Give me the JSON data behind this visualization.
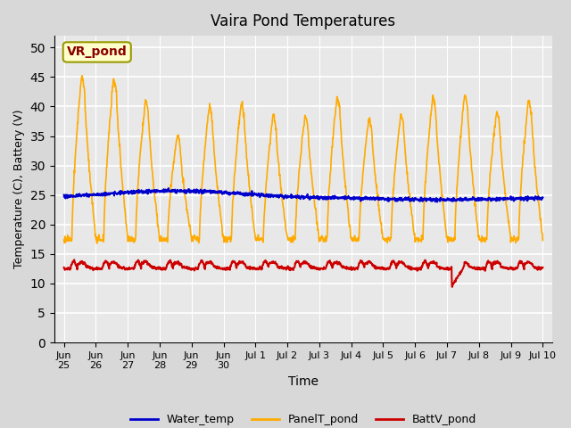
{
  "title": "Vaira Pond Temperatures",
  "xlabel": "Time",
  "ylabel": "Temperature (C), Battery (V)",
  "annotation": "VR_pond",
  "ylim": [
    0,
    52
  ],
  "yticks": [
    0,
    5,
    10,
    15,
    20,
    25,
    30,
    35,
    40,
    45,
    50
  ],
  "x_tick_labels": [
    "Jun\n25",
    "Jun\n26",
    "Jun\n27",
    "Jun\n28",
    "Jun\n29",
    "Jun\n30",
    "Jul 1",
    "Jul 2",
    "Jul 3",
    "Jul 4",
    "Jul 5",
    "Jul 6",
    "Jul 7",
    "Jul 8",
    "Jul 9",
    "Jul 10"
  ],
  "x_tick_positions": [
    0,
    1,
    2,
    3,
    4,
    5,
    6,
    7,
    8,
    9,
    10,
    11,
    12,
    13,
    14,
    15
  ],
  "water_color": "#0000cc",
  "panel_color": "#ffaa00",
  "batt_color": "#cc0000",
  "legend_labels": [
    "Water_temp",
    "PanelT_pond",
    "BattV_pond"
  ],
  "num_days": 15,
  "day_peaks": [
    45,
    44.5,
    41,
    35,
    40,
    40.5,
    38.5,
    38.5,
    41.5,
    38,
    38.5,
    41.5,
    42,
    39,
    41
  ]
}
